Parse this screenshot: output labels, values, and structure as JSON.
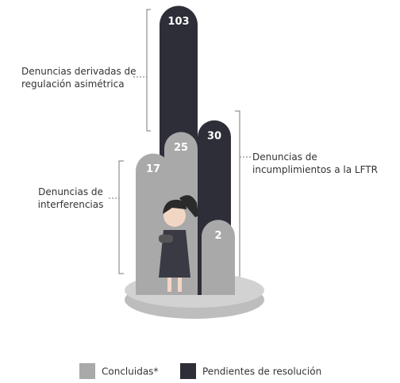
{
  "chart_data": {
    "type": "bar",
    "categories": [
      "Denuncias derivadas de regulación asimétrica",
      "Denuncias de incumplimientos a la LFTR",
      "Denuncias de interferencias"
    ],
    "series": [
      {
        "name": "Concluidas*",
        "color": "#a9a9a9",
        "values": [
          25,
          2,
          17
        ]
      },
      {
        "name": "Pendientes de resolución",
        "color": "#2e2e38",
        "values": [
          103,
          30,
          null
        ]
      }
    ]
  }
}
